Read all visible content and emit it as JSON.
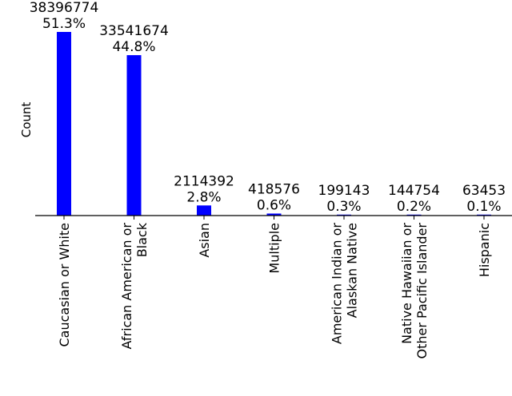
{
  "chart_data": {
    "type": "bar",
    "ylabel": "Count",
    "categories": [
      "Caucasian or White",
      "African American or Black",
      "Asian",
      "Multiple",
      "American Indian or Alaskan Native",
      "Native Hawaiian or Other Pacific Islander",
      "Hispanic"
    ],
    "category_lines": [
      [
        "Caucasian or White"
      ],
      [
        "African American or",
        "Black"
      ],
      [
        "Asian"
      ],
      [
        "Multiple"
      ],
      [
        "American Indian or",
        "Alaskan Native"
      ],
      [
        "Native Hawaiian or",
        "Other Pacific Islander"
      ],
      [
        "Hispanic"
      ]
    ],
    "values": [
      38396774,
      33541674,
      2114392,
      418576,
      199143,
      144754,
      63453
    ],
    "value_labels": [
      "38396774",
      "33541674",
      "2114392",
      "418576",
      "199143",
      "144754",
      "63453"
    ],
    "percent_labels": [
      "51.3%",
      "44.8%",
      "2.8%",
      "0.6%",
      "0.3%",
      "0.2%",
      "0.1%"
    ],
    "ylim": [
      0,
      38396774
    ],
    "bar_color": "#0000ff",
    "grid": false,
    "legend": "none"
  }
}
